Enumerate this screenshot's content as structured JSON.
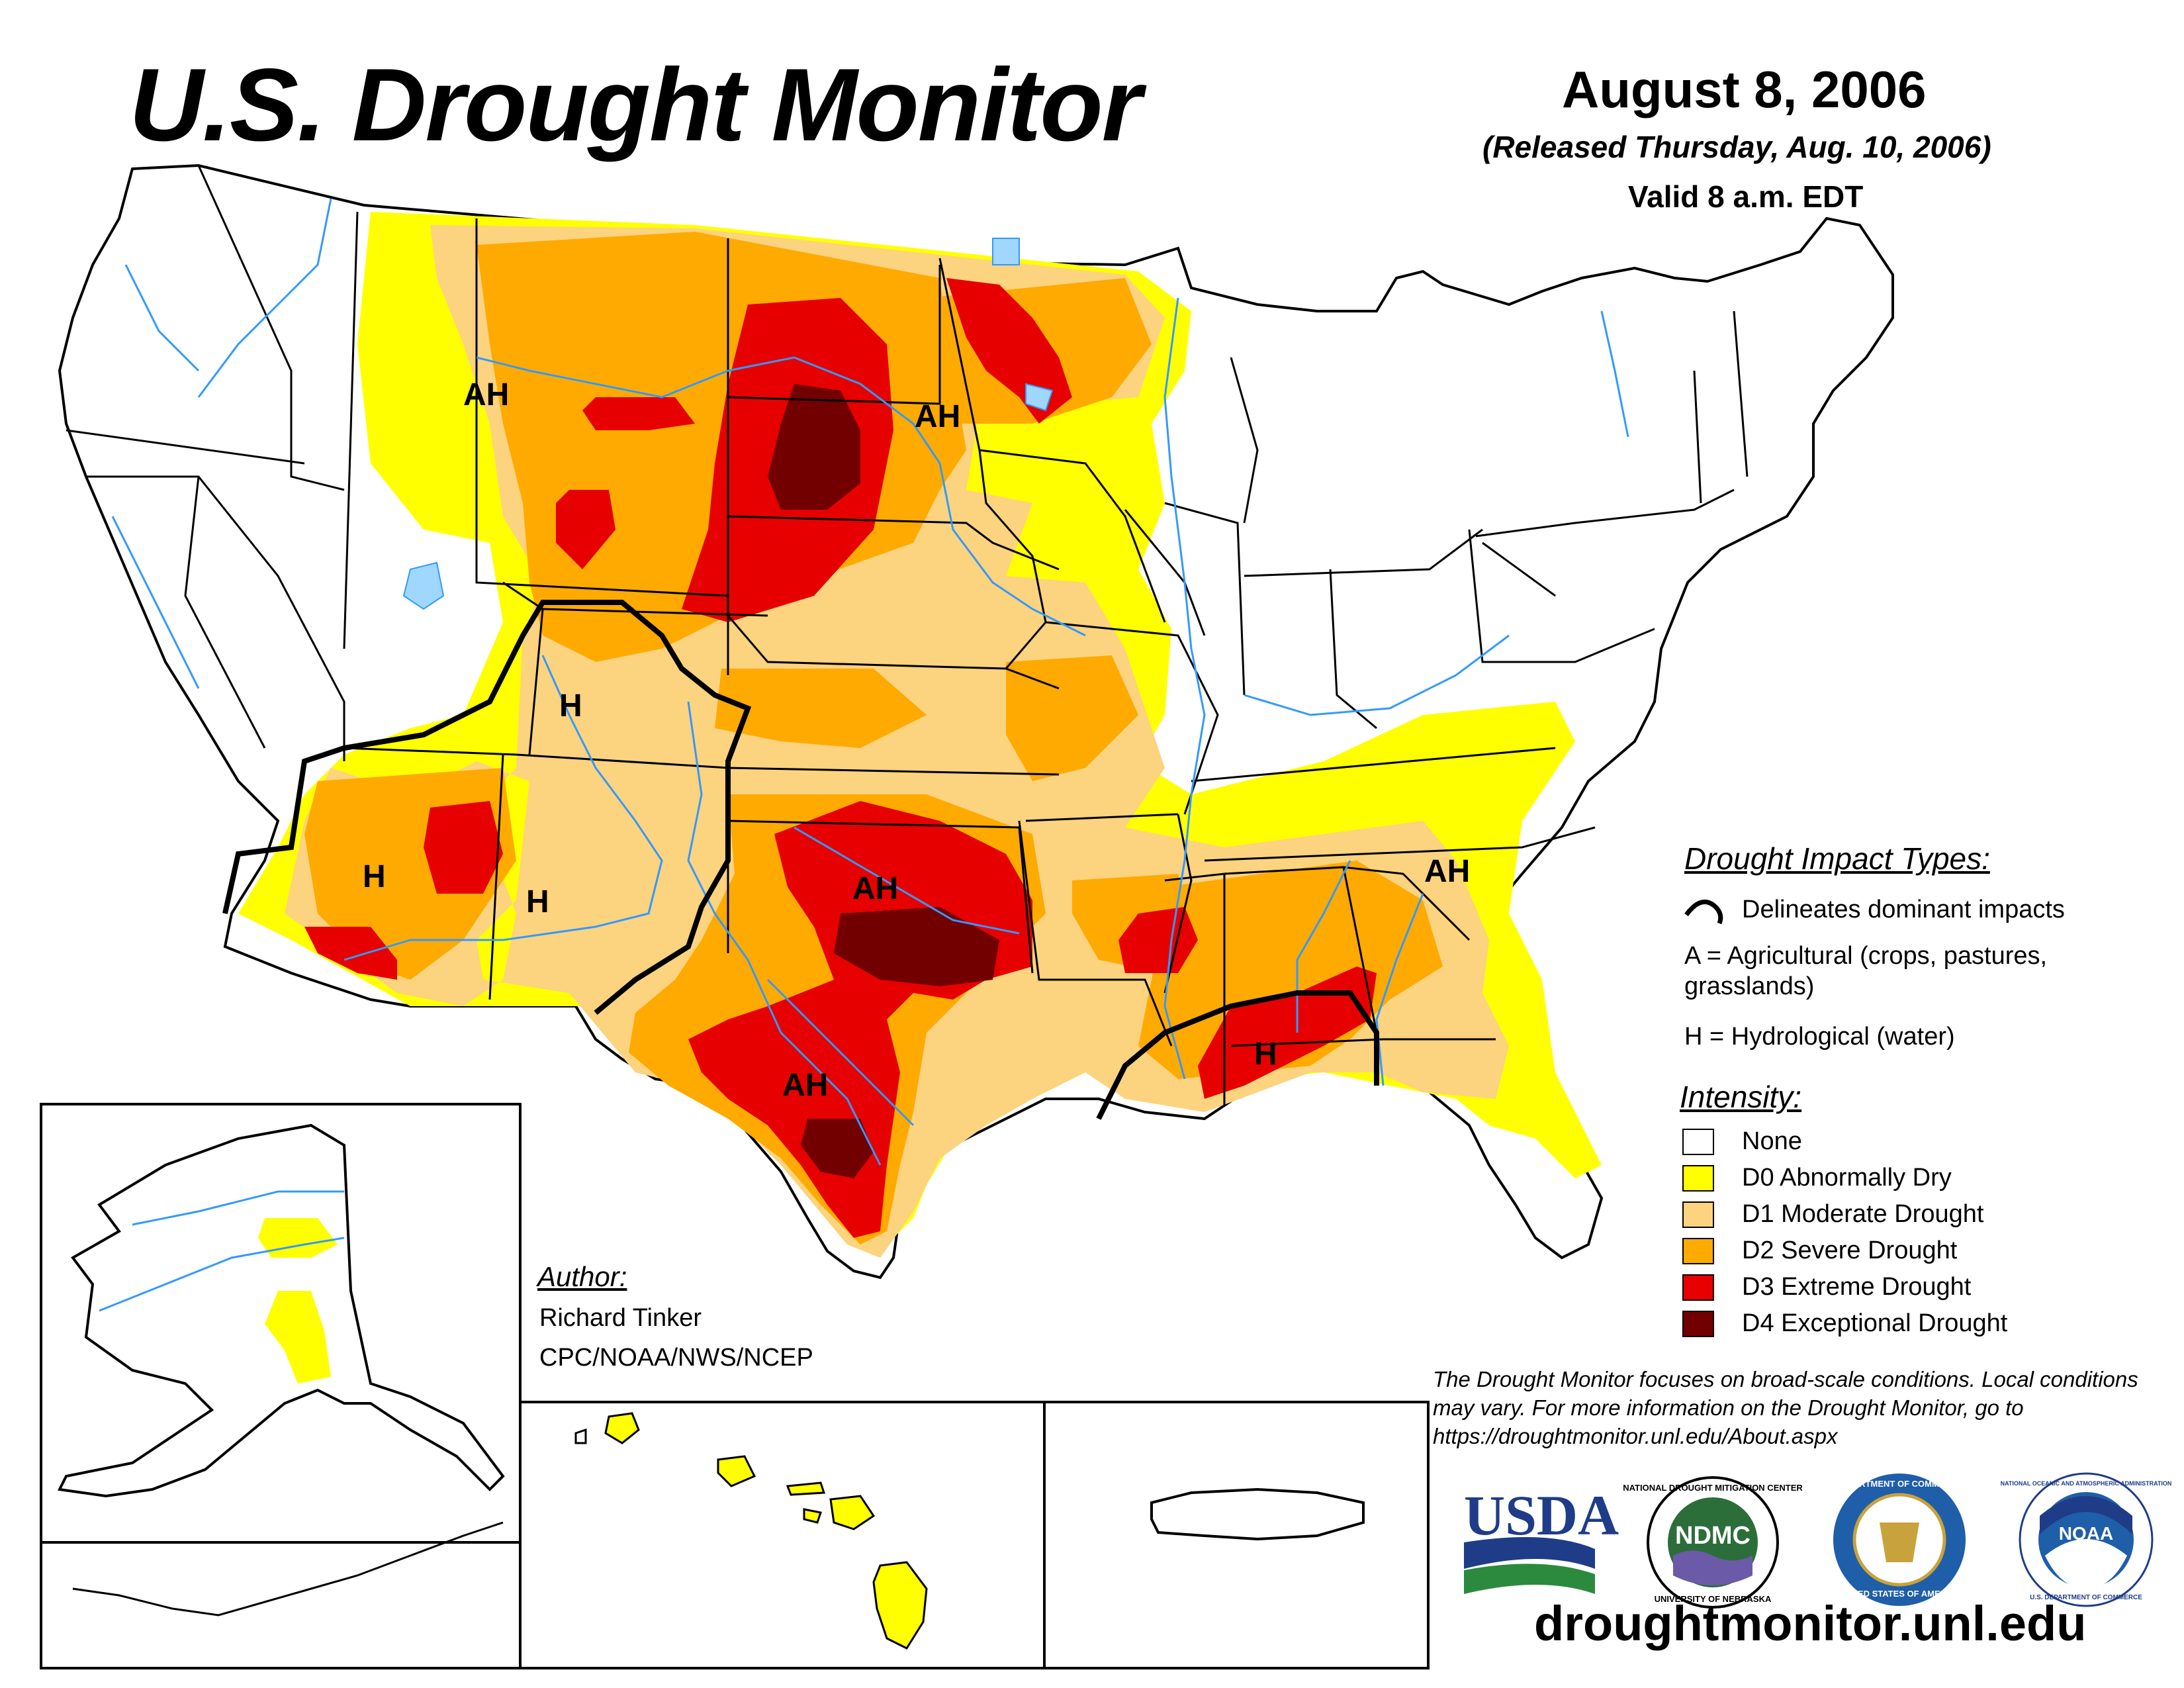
{
  "header": {
    "title": "U.S. Drought Monitor",
    "date": "August 8, 2006",
    "released": "(Released Thursday, Aug. 10, 2006)",
    "valid": "Valid 8 a.m. EDT"
  },
  "impact_legend": {
    "heading": "Drought Impact Types:",
    "delineates": "Delineates dominant impacts",
    "agricultural": "A = Agricultural (crops, pastures,",
    "agricultural_cont": "grasslands)",
    "hydrological": "H = Hydrological (water)"
  },
  "intensity_legend": {
    "heading": "Intensity:",
    "items": [
      {
        "label": "None",
        "color": "#ffffff"
      },
      {
        "label": "D0 Abnormally Dry",
        "color": "#ffff00"
      },
      {
        "label": "D1 Moderate Drought",
        "color": "#fcd37f"
      },
      {
        "label": "D2 Severe Drought",
        "color": "#ffaa00"
      },
      {
        "label": "D3 Extreme Drought",
        "color": "#e60000"
      },
      {
        "label": "D4 Exceptional Drought",
        "color": "#730000"
      }
    ]
  },
  "map_labels": [
    "AH",
    "AH",
    "H",
    "H",
    "H",
    "AH",
    "AH",
    "AH",
    "H",
    "AH"
  ],
  "author": {
    "heading": "Author:",
    "name": "Richard Tinker",
    "org": "CPC/NOAA/NWS/NCEP"
  },
  "disclaimer": "The Drought Monitor focuses on broad-scale conditions. Local conditions may vary. For more information on the Drought Monitor, go to https://droughtmonitor.unl.edu/About.aspx",
  "logos": {
    "usda": "USDA",
    "ndmc": "NDMC",
    "ndmc_ring_top": "NATIONAL DROUGHT MITIGATION CENTER",
    "ndmc_ring_bottom": "UNIVERSITY OF NEBRASKA",
    "commerce_ring_top": "DEPARTMENT OF COMMERCE",
    "commerce_ring_bottom": "UNITED STATES OF AMERICA",
    "noaa": "NOAA",
    "noaa_ring_top": "NATIONAL OCEANIC AND ATMOSPHERIC ADMINISTRATION",
    "noaa_ring_bottom": "U.S. DEPARTMENT OF COMMERCE"
  },
  "website": "droughtmonitor.unl.edu",
  "colors": {
    "d0": "#ffff00",
    "d1": "#fcd37f",
    "d2": "#ffaa00",
    "d3": "#e60000",
    "d4": "#730000",
    "river": "#3399ff",
    "lake": "#9fd7ff"
  }
}
